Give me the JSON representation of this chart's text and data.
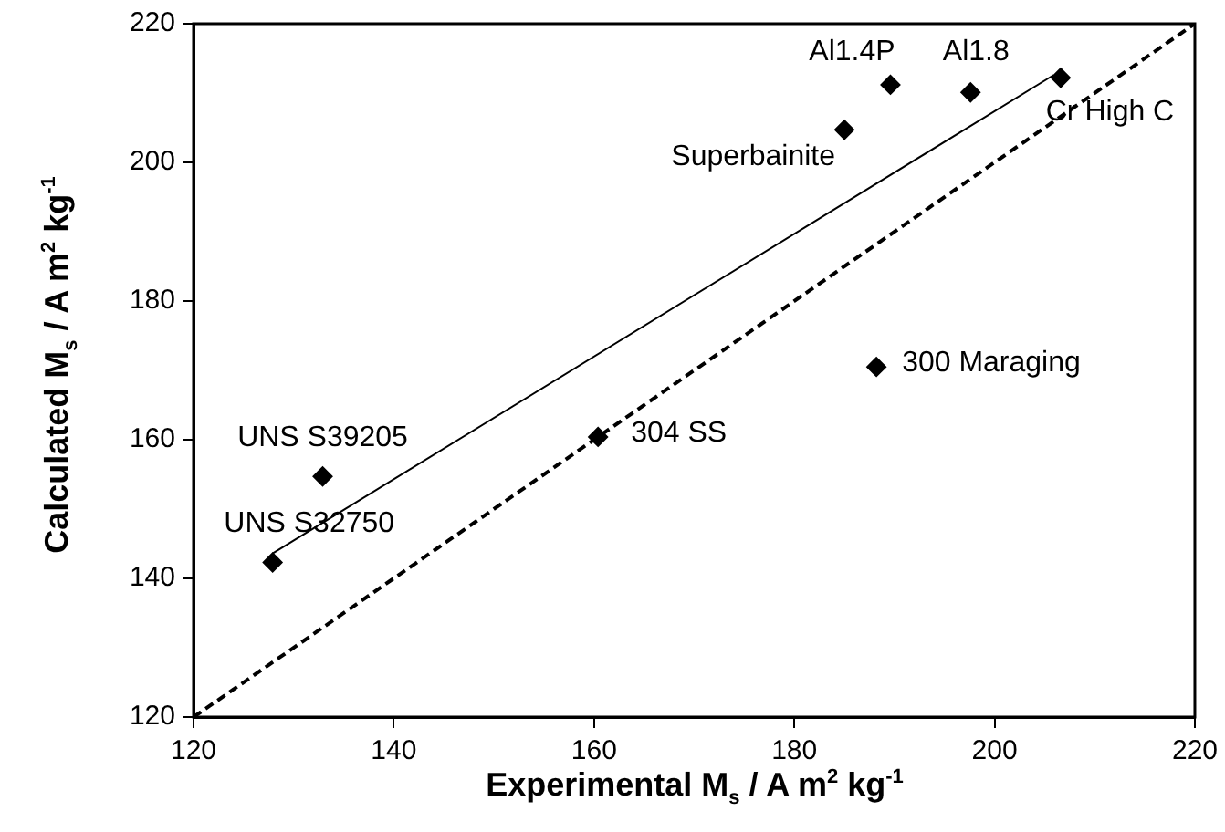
{
  "chart_data": {
    "type": "scatter",
    "xlabel": "Experimental M$_{s}$ / A m$^{2}$ kg$^{-1}$",
    "ylabel": "Calculated M$_{s}$ / A m$^{2}$ kg$^{-1}$",
    "xlim": [
      120,
      220
    ],
    "ylim": [
      120,
      220
    ],
    "xticks": [
      120,
      140,
      160,
      180,
      200,
      220
    ],
    "yticks": [
      120,
      140,
      160,
      180,
      200,
      220
    ],
    "grid": false,
    "legend": false,
    "series": [
      {
        "type": "scatter",
        "color": "#000000",
        "marker": "diamond",
        "x": [
          127.9,
          132.9,
          160.4,
          188.2,
          185.0,
          189.6,
          197.6,
          206.6
        ],
        "values": [
          142.3,
          154.7,
          160.4,
          170.5,
          204.7,
          211.2,
          210.1,
          212.2
        ]
      },
      {
        "type": "line",
        "color": "#000000",
        "marker": "none",
        "line_style": "solid",
        "x": [
          127.9,
          205.9
        ],
        "values": [
          143.6,
          212.6
        ]
      },
      {
        "type": "line",
        "color": "#000000",
        "marker": "none",
        "line_style": "dashed",
        "x": [
          120,
          220
        ],
        "values": [
          120,
          220
        ]
      }
    ],
    "annotations": [
      {
        "text": "UNS S32750",
        "x": 127.9,
        "y": 142.3
      },
      {
        "text": "UNS S39205",
        "x": 132.9,
        "y": 154.7
      },
      {
        "text": "304 SS",
        "x": 160.4,
        "y": 160.4
      },
      {
        "text": "300 Maraging",
        "x": 188.2,
        "y": 170.5
      },
      {
        "text": "Superbainite",
        "x": 185.0,
        "y": 204.7
      },
      {
        "text": "Al1.4P",
        "x": 189.6,
        "y": 211.2
      },
      {
        "text": "Al1.8",
        "x": 197.6,
        "y": 210.1
      },
      {
        "text": "Cr High C",
        "x": 206.6,
        "y": 212.2
      }
    ]
  }
}
